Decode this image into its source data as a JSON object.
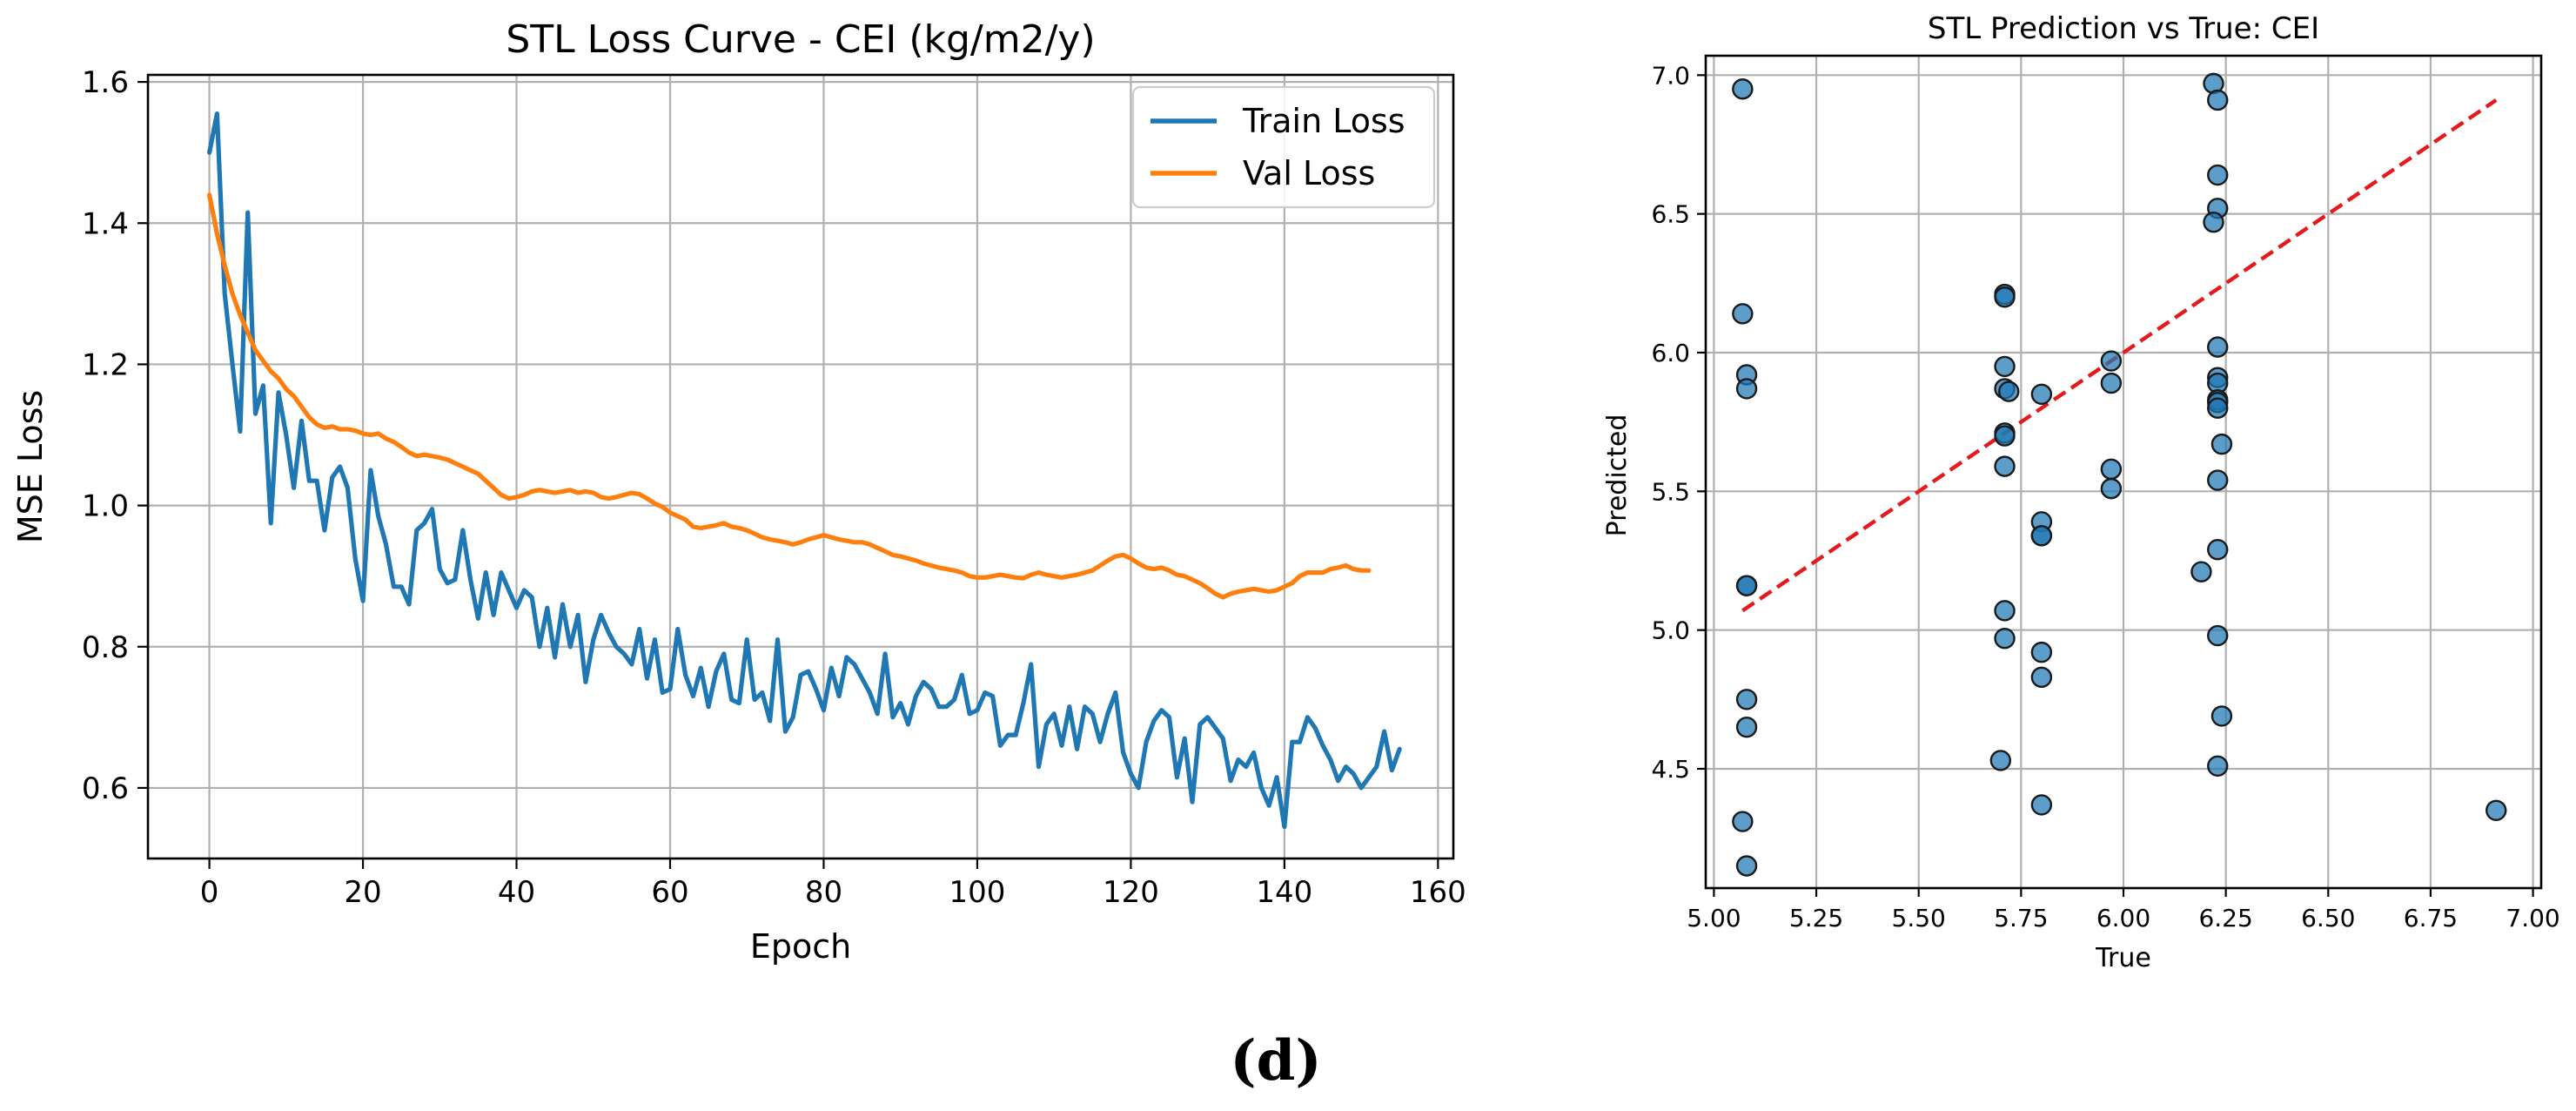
{
  "figure_label": "(d)",
  "chart_data": [
    {
      "type": "line",
      "title": "STL Loss Curve - CEI (kg/m2/y)",
      "xlabel": "Epoch",
      "ylabel": "MSE Loss",
      "xlim": [
        -8,
        162
      ],
      "ylim": [
        0.5,
        1.61
      ],
      "xticks": [
        0,
        20,
        40,
        60,
        80,
        100,
        120,
        140,
        160
      ],
      "yticks": [
        0.6,
        0.8,
        1.0,
        1.2,
        1.4,
        1.6
      ],
      "xtick_labels": [
        "0",
        "20",
        "40",
        "60",
        "80",
        "100",
        "120",
        "140",
        "160"
      ],
      "ytick_labels": [
        "0.6",
        "0.8",
        "1.0",
        "1.2",
        "1.4",
        "1.6"
      ],
      "grid": true,
      "legend": "top-right",
      "series": [
        {
          "name": "Train Loss",
          "color": "#1f77b4",
          "values": [
            1.5,
            1.555,
            1.3,
            1.2,
            1.105,
            1.415,
            1.13,
            1.17,
            0.975,
            1.16,
            1.1,
            1.025,
            1.12,
            1.035,
            1.035,
            0.965,
            1.04,
            1.055,
            1.025,
            0.925,
            0.865,
            1.05,
            0.985,
            0.945,
            0.885,
            0.885,
            0.86,
            0.965,
            0.975,
            0.995,
            0.91,
            0.89,
            0.895,
            0.965,
            0.895,
            0.84,
            0.905,
            0.845,
            0.905,
            0.88,
            0.855,
            0.88,
            0.87,
            0.8,
            0.855,
            0.785,
            0.86,
            0.8,
            0.845,
            0.75,
            0.81,
            0.845,
            0.82,
            0.8,
            0.79,
            0.775,
            0.825,
            0.755,
            0.81,
            0.735,
            0.74,
            0.825,
            0.76,
            0.73,
            0.77,
            0.715,
            0.765,
            0.79,
            0.725,
            0.72,
            0.81,
            0.725,
            0.735,
            0.695,
            0.81,
            0.68,
            0.7,
            0.76,
            0.765,
            0.74,
            0.71,
            0.77,
            0.73,
            0.785,
            0.775,
            0.755,
            0.735,
            0.705,
            0.79,
            0.7,
            0.72,
            0.69,
            0.73,
            0.75,
            0.74,
            0.715,
            0.715,
            0.725,
            0.76,
            0.705,
            0.71,
            0.735,
            0.73,
            0.66,
            0.675,
            0.675,
            0.72,
            0.775,
            0.63,
            0.69,
            0.705,
            0.66,
            0.715,
            0.655,
            0.715,
            0.705,
            0.665,
            0.705,
            0.735,
            0.65,
            0.62,
            0.6,
            0.665,
            0.695,
            0.71,
            0.7,
            0.615,
            0.67,
            0.58,
            0.69,
            0.7,
            0.685,
            0.67,
            0.61,
            0.64,
            0.63,
            0.65,
            0.6,
            0.575,
            0.615,
            0.545,
            0.665,
            0.665,
            0.7,
            0.685,
            0.66,
            0.64,
            0.61,
            0.63,
            0.62,
            0.6,
            0.615,
            0.63,
            0.68,
            0.625,
            0.655
          ]
        },
        {
          "name": "Val Loss",
          "color": "#ff7f0e",
          "values": [
            1.44,
            1.385,
            1.34,
            1.3,
            1.27,
            1.245,
            1.22,
            1.205,
            1.19,
            1.18,
            1.165,
            1.155,
            1.14,
            1.125,
            1.115,
            1.11,
            1.112,
            1.108,
            1.108,
            1.106,
            1.102,
            1.1,
            1.102,
            1.095,
            1.09,
            1.083,
            1.075,
            1.07,
            1.072,
            1.07,
            1.068,
            1.065,
            1.06,
            1.055,
            1.05,
            1.045,
            1.035,
            1.025,
            1.015,
            1.01,
            1.012,
            1.015,
            1.02,
            1.022,
            1.02,
            1.018,
            1.02,
            1.022,
            1.018,
            1.02,
            1.018,
            1.012,
            1.01,
            1.012,
            1.015,
            1.018,
            1.016,
            1.01,
            1.003,
            0.998,
            0.99,
            0.985,
            0.98,
            0.97,
            0.968,
            0.97,
            0.972,
            0.975,
            0.97,
            0.968,
            0.965,
            0.96,
            0.955,
            0.952,
            0.95,
            0.948,
            0.945,
            0.948,
            0.952,
            0.955,
            0.958,
            0.955,
            0.952,
            0.95,
            0.948,
            0.948,
            0.945,
            0.94,
            0.935,
            0.93,
            0.928,
            0.925,
            0.922,
            0.918,
            0.915,
            0.912,
            0.91,
            0.908,
            0.905,
            0.9,
            0.898,
            0.898,
            0.9,
            0.902,
            0.9,
            0.898,
            0.897,
            0.902,
            0.905,
            0.902,
            0.9,
            0.898,
            0.9,
            0.902,
            0.905,
            0.908,
            0.915,
            0.922,
            0.928,
            0.93,
            0.925,
            0.918,
            0.912,
            0.91,
            0.912,
            0.908,
            0.902,
            0.9,
            0.895,
            0.89,
            0.883,
            0.875,
            0.87,
            0.875,
            0.878,
            0.88,
            0.882,
            0.88,
            0.878,
            0.88,
            0.885,
            0.89,
            0.9,
            0.905,
            0.905,
            0.905,
            0.91,
            0.912,
            0.915,
            0.91,
            0.908,
            0.908
          ]
        }
      ]
    },
    {
      "type": "scatter",
      "title": "STL Prediction vs True: CEI",
      "xlabel": "True",
      "ylabel": "Predicted",
      "xlim": [
        4.98,
        7.02
      ],
      "ylim": [
        4.07,
        7.07
      ],
      "xticks": [
        5.0,
        5.25,
        5.5,
        5.75,
        6.0,
        6.25,
        6.5,
        6.75,
        7.0
      ],
      "yticks": [
        4.5,
        5.0,
        5.5,
        6.0,
        6.5,
        7.0
      ],
      "xtick_labels": [
        "5.00",
        "5.25",
        "5.50",
        "5.75",
        "6.00",
        "6.25",
        "6.50",
        "6.75",
        "7.00"
      ],
      "ytick_labels": [
        "4.5",
        "5.0",
        "5.5",
        "6.0",
        "6.5",
        "7.0"
      ],
      "grid": true,
      "point_color": "#1f77b4",
      "reference_line": {
        "x": [
          5.07,
          6.91
        ],
        "y": [
          5.07,
          6.91
        ],
        "color": "#e41a1c",
        "style": "dashed"
      },
      "points": [
        [
          5.07,
          6.95
        ],
        [
          5.07,
          6.14
        ],
        [
          5.08,
          5.92
        ],
        [
          5.08,
          5.87
        ],
        [
          5.08,
          5.16
        ],
        [
          5.08,
          5.16
        ],
        [
          5.08,
          4.75
        ],
        [
          5.08,
          4.65
        ],
        [
          5.07,
          4.31
        ],
        [
          5.08,
          4.15
        ],
        [
          5.71,
          6.21
        ],
        [
          5.71,
          6.2
        ],
        [
          5.71,
          5.95
        ],
        [
          5.71,
          5.87
        ],
        [
          5.72,
          5.86
        ],
        [
          5.71,
          5.71
        ],
        [
          5.71,
          5.7
        ],
        [
          5.71,
          5.59
        ],
        [
          5.71,
          5.07
        ],
        [
          5.71,
          4.97
        ],
        [
          5.7,
          4.53
        ],
        [
          5.8,
          5.85
        ],
        [
          5.8,
          5.39
        ],
        [
          5.8,
          5.34
        ],
        [
          5.8,
          5.34
        ],
        [
          5.8,
          4.92
        ],
        [
          5.8,
          4.83
        ],
        [
          5.8,
          4.37
        ],
        [
          5.97,
          5.97
        ],
        [
          5.97,
          5.89
        ],
        [
          5.97,
          5.58
        ],
        [
          5.97,
          5.51
        ],
        [
          6.22,
          6.97
        ],
        [
          6.23,
          6.91
        ],
        [
          6.23,
          6.64
        ],
        [
          6.23,
          6.52
        ],
        [
          6.22,
          6.47
        ],
        [
          6.23,
          6.02
        ],
        [
          6.23,
          5.91
        ],
        [
          6.23,
          5.89
        ],
        [
          6.23,
          5.83
        ],
        [
          6.23,
          5.82
        ],
        [
          6.23,
          5.8
        ],
        [
          6.24,
          5.67
        ],
        [
          6.23,
          5.54
        ],
        [
          6.23,
          5.29
        ],
        [
          6.19,
          5.21
        ],
        [
          6.23,
          4.98
        ],
        [
          6.24,
          4.69
        ],
        [
          6.23,
          4.51
        ],
        [
          6.91,
          4.35
        ]
      ]
    }
  ]
}
